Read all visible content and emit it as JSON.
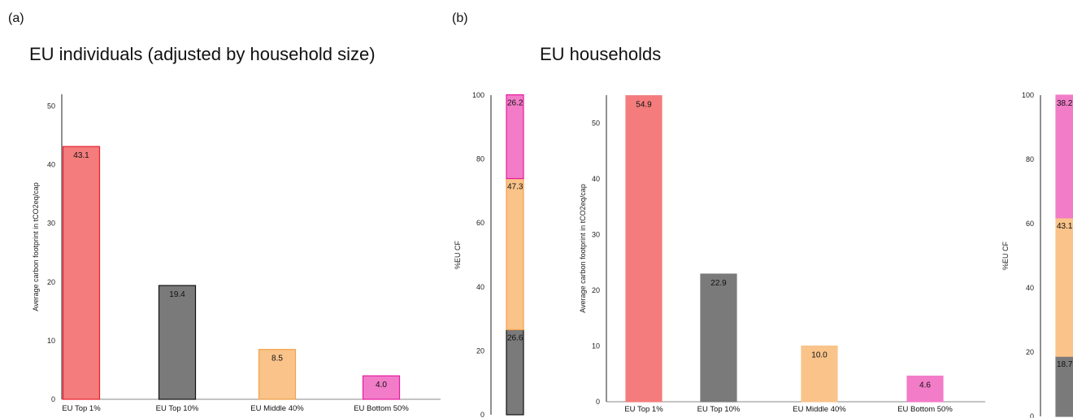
{
  "panels": [
    {
      "letter": "(a)",
      "title": "EU individuals (adjusted by household size)"
    },
    {
      "letter": "(b)",
      "title": "EU households"
    }
  ],
  "chart_data": [
    {
      "type": "bar",
      "ylabel": "Average carbon footprint in tCO2eq/cap",
      "ylim": [
        0,
        52
      ],
      "yticks": [
        0,
        10,
        20,
        30,
        40,
        50
      ],
      "categories": [
        "EU Top 1%",
        "EU Top 10%",
        "EU Middle 40%",
        "EU Bottom 50%"
      ],
      "values": [
        43.1,
        19.4,
        8.5,
        4.0
      ],
      "value_labels": [
        "43.1",
        "19.4",
        "8.5",
        "4.0"
      ],
      "colors": [
        "#f47c7c",
        "#7a7a7a",
        "#f9c38a",
        "#f27cc8"
      ],
      "border_colors": [
        "#e8202a",
        "#111111",
        "#f2a24a",
        "#e81aa0"
      ]
    },
    {
      "type": "bar",
      "stacked": true,
      "ylabel": "%EU CF",
      "ylim": [
        0,
        100
      ],
      "yticks": [
        0,
        20,
        40,
        60,
        80,
        100
      ],
      "segments": [
        {
          "value": 26.6,
          "label": "26.6",
          "color": "#7a7a7a",
          "border": "#111111"
        },
        {
          "value": 47.3,
          "label": "47.3",
          "color": "#f9c38a",
          "border": "#f2a24a"
        },
        {
          "value": 26.2,
          "label": "26.2",
          "color": "#f27cc8",
          "border": "#e81aa0"
        }
      ]
    },
    {
      "type": "bar",
      "ylabel": "Average carbon footprint in tCO2eq/cap",
      "ylim": [
        0,
        55
      ],
      "yticks": [
        0,
        10,
        20,
        30,
        40,
        50
      ],
      "categories": [
        "EU Top 1%",
        "EU Top 10%",
        "EU Middle 40%",
        "EU Bottom 50%"
      ],
      "values": [
        54.9,
        22.9,
        10.0,
        4.6
      ],
      "value_labels": [
        "54.9",
        "22.9",
        "10.0",
        "4.6"
      ],
      "colors": [
        "#f47c7c",
        "#7a7a7a",
        "#f9c38a",
        "#f27cc8"
      ],
      "border_colors": [
        "#f47c7c",
        "#7a7a7a",
        "#f9c38a",
        "#f27cc8"
      ]
    },
    {
      "type": "bar",
      "stacked": true,
      "ylabel": "%EU CF",
      "ylim": [
        0,
        100
      ],
      "yticks": [
        0,
        20,
        40,
        60,
        80,
        100
      ],
      "segments": [
        {
          "value": 18.7,
          "label": "18.7",
          "color": "#7a7a7a",
          "border": "#7a7a7a"
        },
        {
          "value": 43.1,
          "label": "43.1",
          "color": "#f9c38a",
          "border": "#f9c38a"
        },
        {
          "value": 38.2,
          "label": "38.2",
          "color": "#f27cc8",
          "border": "#f27cc8"
        }
      ]
    }
  ]
}
